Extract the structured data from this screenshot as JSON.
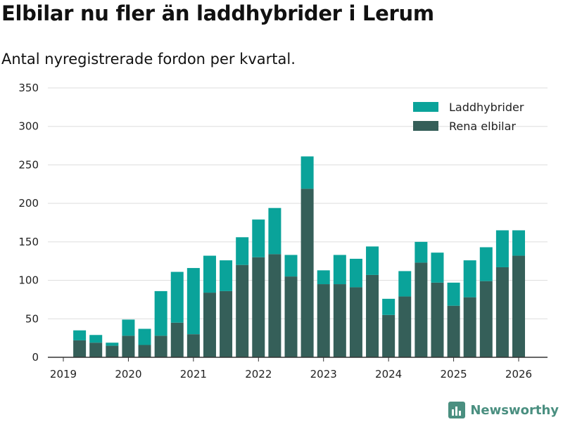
{
  "title": "Elbilar nu fler än laddhybrider i Lerum",
  "subtitle": "Antal nyregistrerade fordon per kvartal.",
  "brand": "Newsworthy",
  "colors": {
    "laddhybrider": "#0aa39a",
    "elbilar": "#355f59",
    "grid": "#dddddd",
    "axis": "#333333",
    "brand": "#4a8f80"
  },
  "chart_data": {
    "type": "bar",
    "stacked": true,
    "title": "Elbilar nu fler än laddhybrider i Lerum",
    "subtitle": "Antal nyregistrerade fordon per kvartal.",
    "xlabel": "",
    "ylabel": "",
    "ylim": [
      0,
      350
    ],
    "yticks": [
      0,
      50,
      100,
      150,
      200,
      250,
      300,
      350
    ],
    "xticks": [
      {
        "label": "2019",
        "at": 2019.0
      },
      {
        "label": "2020",
        "at": 2020.0
      },
      {
        "label": "2021",
        "at": 2021.0
      },
      {
        "label": "2022",
        "at": 2022.0
      },
      {
        "label": "2023",
        "at": 2023.0
      },
      {
        "label": "2024",
        "at": 2024.0
      },
      {
        "label": "2025",
        "at": 2025.0
      },
      {
        "label": "2026",
        "at": 2026.0
      }
    ],
    "grid": true,
    "legend_position": "top-right",
    "categories": [
      "2019 Q2",
      "2019 Q3",
      "2019 Q4",
      "2020 Q1",
      "2020 Q2",
      "2020 Q3",
      "2020 Q4",
      "2021 Q1",
      "2021 Q2",
      "2021 Q3",
      "2021 Q4",
      "2022 Q1",
      "2022 Q2",
      "2022 Q3",
      "2022 Q4",
      "2023 Q1",
      "2023 Q2",
      "2023 Q3",
      "2023 Q4",
      "2024 Q1",
      "2024 Q2",
      "2024 Q3",
      "2024 Q4",
      "2025 Q1",
      "2025 Q2",
      "2025 Q3",
      "2025 Q4",
      "2026 Q1"
    ],
    "x": [
      2019.25,
      2019.5,
      2019.75,
      2020.0,
      2020.25,
      2020.5,
      2020.75,
      2021.0,
      2021.25,
      2021.5,
      2021.75,
      2022.0,
      2022.25,
      2022.5,
      2022.75,
      2023.0,
      2023.25,
      2023.5,
      2023.75,
      2024.0,
      2024.25,
      2024.5,
      2024.75,
      2025.0,
      2025.25,
      2025.5,
      2025.75,
      2026.0
    ],
    "series": [
      {
        "name": "Rena elbilar",
        "key": "elbilar",
        "values": [
          22,
          19,
          15,
          28,
          16,
          28,
          45,
          30,
          84,
          86,
          120,
          130,
          134,
          105,
          219,
          95,
          95,
          91,
          107,
          55,
          79,
          123,
          97,
          67,
          78,
          99,
          117,
          132
        ]
      },
      {
        "name": "Laddhybrider",
        "key": "laddhybrider",
        "values": [
          13,
          10,
          4,
          21,
          21,
          58,
          66,
          86,
          48,
          40,
          36,
          49,
          60,
          28,
          42,
          18,
          38,
          37,
          37,
          21,
          33,
          27,
          39,
          30,
          48,
          44,
          48,
          33
        ]
      }
    ],
    "legend": [
      {
        "name": "Laddhybrider",
        "key": "laddhybrider"
      },
      {
        "name": "Rena elbilar",
        "key": "elbilar"
      }
    ]
  }
}
